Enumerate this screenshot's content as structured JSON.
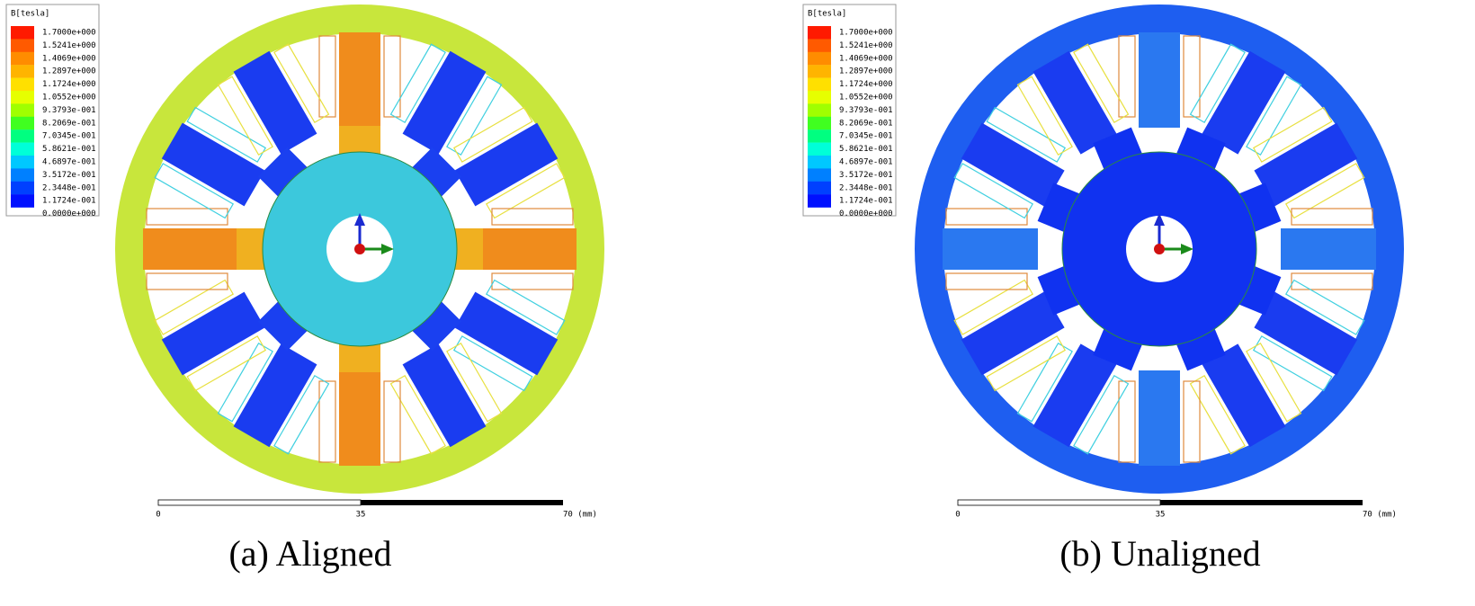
{
  "panels": [
    {
      "legend": {
        "title": "B[tesla]",
        "labels": [
          "1.7000e+000",
          "1.5241e+000",
          "1.4069e+000",
          "1.2897e+000",
          "1.1724e+000",
          "1.0552e+000",
          "9.3793e-001",
          "8.2069e-001",
          "7.0345e-001",
          "5.8621e-001",
          "4.6897e-001",
          "3.5172e-001",
          "2.3448e-001",
          "1.1724e-001",
          "0.0000e+000"
        ]
      },
      "scale": [
        "0",
        "35",
        "70 (mm)"
      ],
      "caption": "(a) Aligned"
    },
    {
      "legend": {
        "title": "B[tesla]",
        "labels": [
          "1.7000e+000",
          "1.5241e+000",
          "1.4069e+000",
          "1.2897e+000",
          "1.1724e+000",
          "1.0552e+000",
          "9.3793e-001",
          "8.2069e-001",
          "7.0345e-001",
          "5.8621e-001",
          "4.6897e-001",
          "3.5172e-001",
          "2.3448e-001",
          "1.1724e-001",
          "0.0000e+000"
        ]
      },
      "scale": [
        "0",
        "35",
        "70 (mm)"
      ],
      "caption": "(b) Unaligned"
    }
  ]
}
